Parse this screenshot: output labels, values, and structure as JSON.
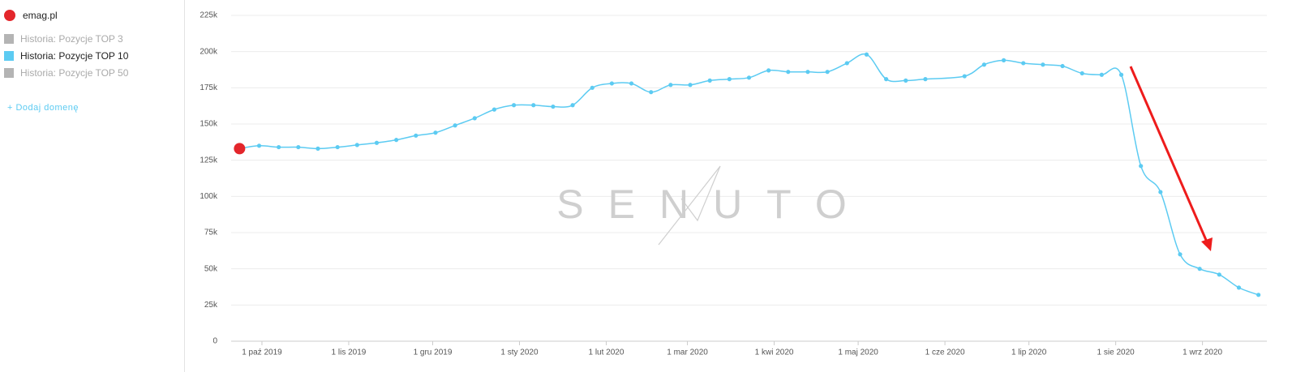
{
  "sidebar": {
    "domain": "emag.pl",
    "legend": [
      {
        "label": "Historia: Pozycje TOP 3",
        "color": "#b4b4b4"
      },
      {
        "label": "Historia: Pozycje TOP 50",
        "color": "#b4b4b4"
      }
    ],
    "add_domain": "+ Dodaj domenę"
  },
  "chart_data": {
    "type": "line",
    "watermark": "SENUTO",
    "x": [
      "2019-09-23",
      "2019-09-30",
      "2019-10-07",
      "2019-10-14",
      "2019-10-21",
      "2019-10-28",
      "2019-11-04",
      "2019-11-11",
      "2019-11-18",
      "2019-11-25",
      "2019-12-02",
      "2019-12-09",
      "2019-12-16",
      "2019-12-23",
      "2019-12-30",
      "2020-01-06",
      "2020-01-13",
      "2020-01-20",
      "2020-01-27",
      "2020-02-03",
      "2020-02-10",
      "2020-02-17",
      "2020-02-24",
      "2020-03-02",
      "2020-03-09",
      "2020-03-16",
      "2020-03-23",
      "2020-03-30",
      "2020-04-06",
      "2020-04-13",
      "2020-04-20",
      "2020-04-27",
      "2020-05-04",
      "2020-05-11",
      "2020-05-18",
      "2020-05-25",
      "2020-06-08",
      "2020-06-15",
      "2020-06-22",
      "2020-06-29",
      "2020-07-06",
      "2020-07-13",
      "2020-07-20",
      "2020-07-27",
      "2020-08-03",
      "2020-08-10",
      "2020-08-17",
      "2020-08-24",
      "2020-08-31",
      "2020-09-07",
      "2020-09-14",
      "2020-09-21"
    ],
    "series": [
      {
        "name": "Historia: Pozycje TOP 10",
        "color": "#5ccbf2",
        "values": [
          133000,
          135000,
          134000,
          134000,
          133000,
          134000,
          135500,
          137000,
          139000,
          142000,
          144000,
          149000,
          154000,
          160000,
          163000,
          163000,
          162000,
          163000,
          175000,
          178000,
          178000,
          172000,
          177000,
          177000,
          180000,
          181000,
          182000,
          187000,
          186000,
          186000,
          186000,
          192000,
          198000,
          181000,
          180000,
          181000,
          183000,
          191000,
          194000,
          192000,
          191000,
          190000,
          185000,
          184000,
          184000,
          121000,
          103000,
          60000,
          50000,
          46000,
          37000,
          32000
        ]
      }
    ],
    "xlim": [
      "2019-09-20",
      "2020-09-24"
    ],
    "xticks": [
      {
        "value": "2019-10-01",
        "label": "1 paź 2019"
      },
      {
        "value": "2019-11-01",
        "label": "1 lis 2019"
      },
      {
        "value": "2019-12-01",
        "label": "1 gru 2019"
      },
      {
        "value": "2020-01-01",
        "label": "1 sty 2020"
      },
      {
        "value": "2020-02-01",
        "label": "1 lut 2020"
      },
      {
        "value": "2020-03-01",
        "label": "1 mar 2020"
      },
      {
        "value": "2020-04-01",
        "label": "1 kwi 2020"
      },
      {
        "value": "2020-05-01",
        "label": "1 maj 2020"
      },
      {
        "value": "2020-06-01",
        "label": "1 cze 2020"
      },
      {
        "value": "2020-07-01",
        "label": "1 lip 2020"
      },
      {
        "value": "2020-08-01",
        "label": "1 sie 2020"
      },
      {
        "value": "2020-09-01",
        "label": "1 wrz 2020"
      }
    ],
    "ylim": [
      0,
      225000
    ],
    "yticks": [
      0,
      {
        "value": 25000,
        "label": "25k"
      },
      {
        "value": 50000,
        "label": "50k"
      },
      {
        "value": 75000,
        "label": "75k"
      },
      {
        "value": 100000,
        "label": "100k"
      },
      {
        "value": 125000,
        "label": "125k"
      },
      {
        "value": 150000,
        "label": "150k"
      },
      {
        "value": 175000,
        "label": "175k"
      },
      {
        "value": 200000,
        "label": "200k"
      },
      {
        "value": 225000,
        "label": "225k"
      }
    ],
    "grid": true
  }
}
